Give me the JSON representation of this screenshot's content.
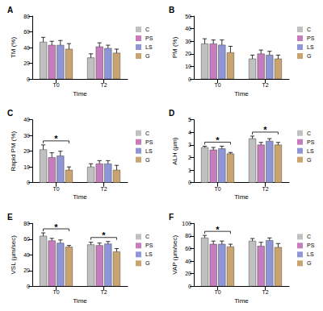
{
  "chart_data": [
    {
      "type": "bar",
      "title": "A",
      "x_label": "Time",
      "y_label": "TM (%)",
      "categories": [
        "T0",
        "T2"
      ],
      "ylim": [
        0,
        80
      ],
      "yticks": [
        0,
        20,
        40,
        60,
        80
      ],
      "grid": false,
      "legend": "right",
      "series": [
        {
          "name": "C",
          "color": "#c0c0c0",
          "values": [
            47,
            27
          ],
          "errors": [
            6,
            5
          ]
        },
        {
          "name": "PS",
          "color": "#c77dbd",
          "values": [
            43,
            41
          ],
          "errors": [
            5,
            5
          ]
        },
        {
          "name": "LS",
          "color": "#8e96d8",
          "values": [
            43,
            39
          ],
          "errors": [
            6,
            4
          ]
        },
        {
          "name": "G",
          "color": "#c9a46e",
          "values": [
            38,
            33
          ],
          "errors": [
            7,
            5
          ]
        }
      ],
      "annotations": []
    },
    {
      "type": "bar",
      "title": "B",
      "x_label": "Time",
      "y_label": "PM (%)",
      "categories": [
        "T0",
        "T2"
      ],
      "ylim": [
        0,
        50
      ],
      "yticks": [
        0,
        10,
        20,
        30,
        40,
        50
      ],
      "grid": false,
      "legend": "right",
      "series": [
        {
          "name": "C",
          "color": "#c0c0c0",
          "values": [
            28,
            16
          ],
          "errors": [
            4,
            3
          ]
        },
        {
          "name": "PS",
          "color": "#c77dbd",
          "values": [
            28,
            20
          ],
          "errors": [
            3,
            3
          ]
        },
        {
          "name": "LS",
          "color": "#8e96d8",
          "values": [
            27,
            19
          ],
          "errors": [
            4,
            3
          ]
        },
        {
          "name": "G",
          "color": "#c9a46e",
          "values": [
            21,
            16
          ],
          "errors": [
            5,
            3
          ]
        }
      ],
      "annotations": []
    },
    {
      "type": "bar",
      "title": "C",
      "x_label": "Time",
      "y_label": "Rapid PM (%)",
      "categories": [
        "T0",
        "T2"
      ],
      "ylim": [
        0,
        40
      ],
      "yticks": [
        0,
        10,
        20,
        30,
        40
      ],
      "grid": false,
      "legend": "right",
      "series": [
        {
          "name": "C",
          "color": "#c0c0c0",
          "values": [
            21,
            10
          ],
          "errors": [
            3,
            2
          ]
        },
        {
          "name": "PS",
          "color": "#c77dbd",
          "values": [
            16,
            12
          ],
          "errors": [
            3,
            2
          ]
        },
        {
          "name": "LS",
          "color": "#8e96d8",
          "values": [
            17,
            12
          ],
          "errors": [
            3,
            2
          ]
        },
        {
          "name": "G",
          "color": "#c9a46e",
          "values": [
            8,
            8
          ],
          "errors": [
            2,
            3
          ]
        }
      ],
      "annotations": [
        {
          "text": "*",
          "time": "T0",
          "from": "C",
          "to": "G"
        }
      ]
    },
    {
      "type": "bar",
      "title": "D",
      "x_label": "Time",
      "y_label": "ALH (μm)",
      "categories": [
        "T0",
        "T2"
      ],
      "ylim": [
        0,
        5
      ],
      "yticks": [
        0,
        1,
        2,
        3,
        4,
        5
      ],
      "grid": false,
      "legend": "right",
      "series": [
        {
          "name": "C",
          "color": "#c0c0c0",
          "values": [
            2.8,
            3.5
          ],
          "errors": [
            0.1,
            0.2
          ]
        },
        {
          "name": "PS",
          "color": "#c77dbd",
          "values": [
            2.6,
            3.0
          ],
          "errors": [
            0.2,
            0.2
          ]
        },
        {
          "name": "LS",
          "color": "#8e96d8",
          "values": [
            2.7,
            3.3
          ],
          "errors": [
            0.2,
            0.2
          ]
        },
        {
          "name": "G",
          "color": "#c9a46e",
          "values": [
            2.3,
            3.0
          ],
          "errors": [
            0.1,
            0.2
          ]
        }
      ],
      "annotations": [
        {
          "text": "*",
          "time": "T0",
          "from": "C",
          "to": "G"
        },
        {
          "text": "*",
          "time": "T2",
          "from": "C",
          "to": "G"
        }
      ]
    },
    {
      "type": "bar",
      "title": "E",
      "x_label": "Time",
      "y_label": "VSL (μm/sec)",
      "categories": [
        "T0",
        "T2"
      ],
      "ylim": [
        0,
        80
      ],
      "yticks": [
        0,
        20,
        40,
        60,
        80
      ],
      "grid": false,
      "legend": "right",
      "series": [
        {
          "name": "C",
          "color": "#c0c0c0",
          "values": [
            64,
            53
          ],
          "errors": [
            4,
            3
          ]
        },
        {
          "name": "PS",
          "color": "#c77dbd",
          "values": [
            58,
            52
          ],
          "errors": [
            3,
            3
          ]
        },
        {
          "name": "LS",
          "color": "#8e96d8",
          "values": [
            55,
            54
          ],
          "errors": [
            4,
            3
          ]
        },
        {
          "name": "G",
          "color": "#c9a46e",
          "values": [
            50,
            44
          ],
          "errors": [
            2,
            4
          ]
        }
      ],
      "annotations": [
        {
          "text": "*",
          "time": "T0",
          "from": "C",
          "to": "G"
        },
        {
          "text": "*",
          "time": "T2",
          "from": "C",
          "to": "G"
        }
      ]
    },
    {
      "type": "bar",
      "title": "F",
      "x_label": "Time",
      "y_label": "VAP (μm/sec)",
      "categories": [
        "T0",
        "T2"
      ],
      "ylim": [
        0,
        100
      ],
      "yticks": [
        0,
        20,
        40,
        60,
        80,
        100
      ],
      "grid": false,
      "legend": "right",
      "series": [
        {
          "name": "C",
          "color": "#c0c0c0",
          "values": [
            77,
            72
          ],
          "errors": [
            4,
            4
          ]
        },
        {
          "name": "PS",
          "color": "#c77dbd",
          "values": [
            67,
            64
          ],
          "errors": [
            5,
            6
          ]
        },
        {
          "name": "LS",
          "color": "#8e96d8",
          "values": [
            67,
            73
          ],
          "errors": [
            5,
            4
          ]
        },
        {
          "name": "G",
          "color": "#c9a46e",
          "values": [
            63,
            62
          ],
          "errors": [
            4,
            6
          ]
        }
      ],
      "annotations": [
        {
          "text": "*",
          "time": "T0",
          "from": "C",
          "to": "G"
        }
      ]
    }
  ]
}
